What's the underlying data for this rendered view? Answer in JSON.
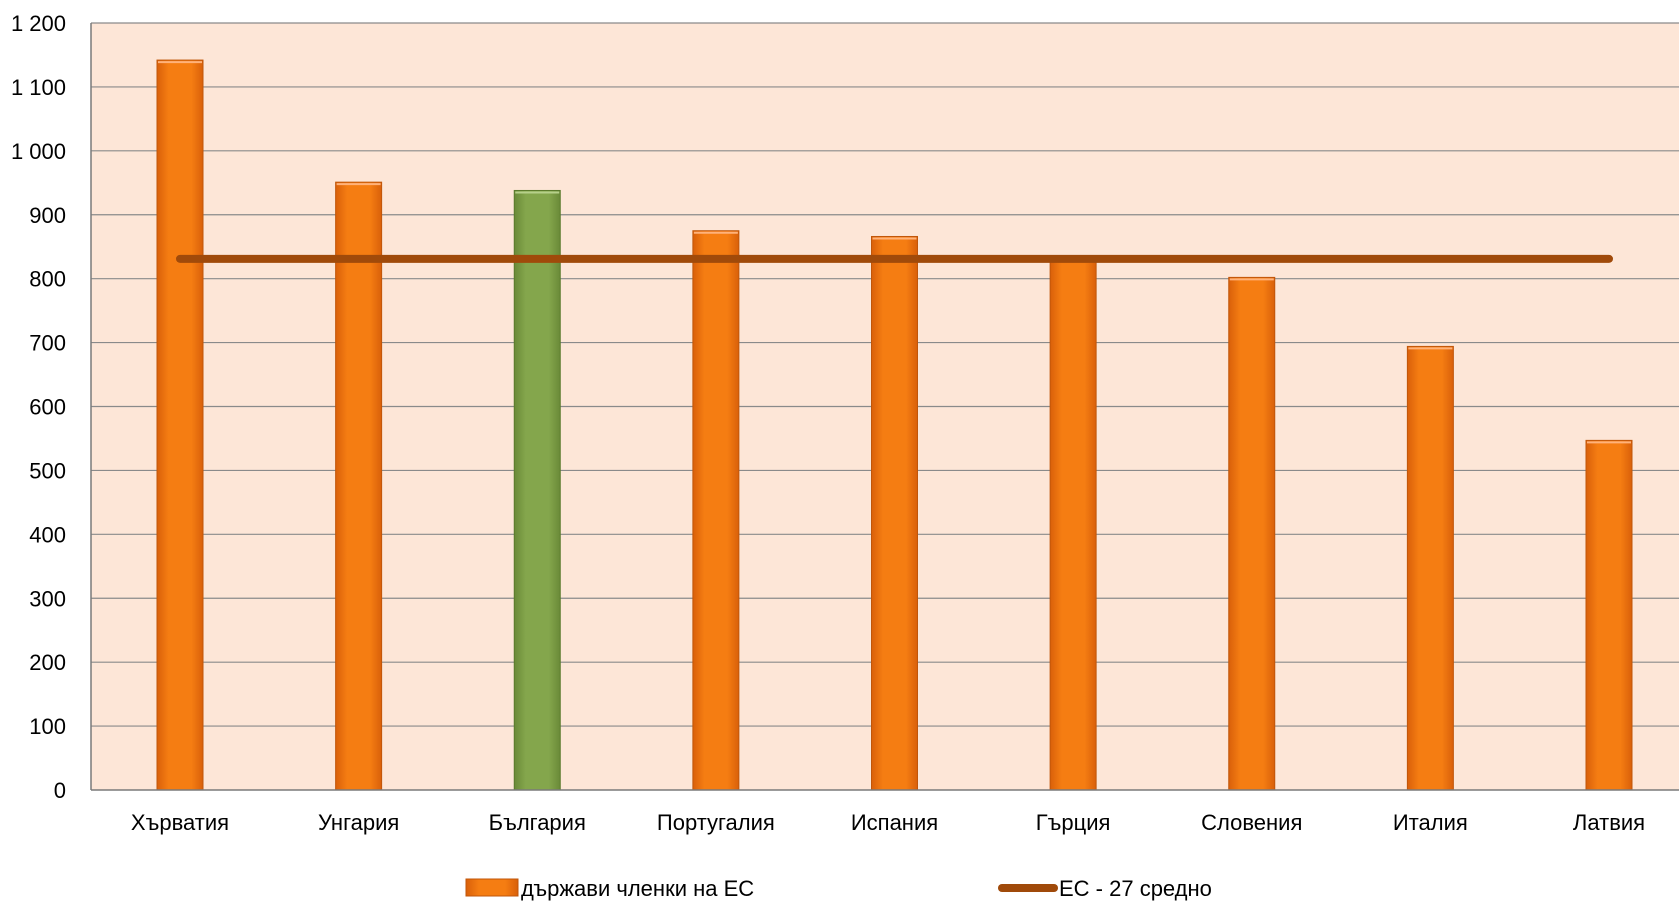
{
  "chart_data": {
    "type": "bar",
    "categories": [
      "Хърватия",
      "Унгария",
      "България",
      "Португалия",
      "Испания",
      "Гърция",
      "Словения",
      "Италия",
      "Латвия"
    ],
    "series": [
      {
        "name": "държави членки на ЕС",
        "type": "bar",
        "values": [
          1142,
          951,
          938,
          875,
          866,
          830,
          802,
          694,
          547
        ],
        "color": "#f07a10",
        "highlight": {
          "category": "България",
          "color": "#7fa046"
        }
      },
      {
        "name": "ЕС - 27 средно",
        "type": "line",
        "values": [
          831,
          831,
          831,
          831,
          831,
          831,
          831,
          831,
          831
        ],
        "color": "#a04a0a"
      }
    ],
    "ylim": [
      0,
      1200
    ],
    "yticks": [
      "0",
      "100",
      "200",
      "300",
      "400",
      "500",
      "600",
      "700",
      "800",
      "900",
      "1 000",
      "1 100",
      "1 200"
    ],
    "grid": true,
    "plot_background": "#fde6d7",
    "legend_position": "bottom",
    "title": "",
    "xlabel": "",
    "ylabel": ""
  }
}
